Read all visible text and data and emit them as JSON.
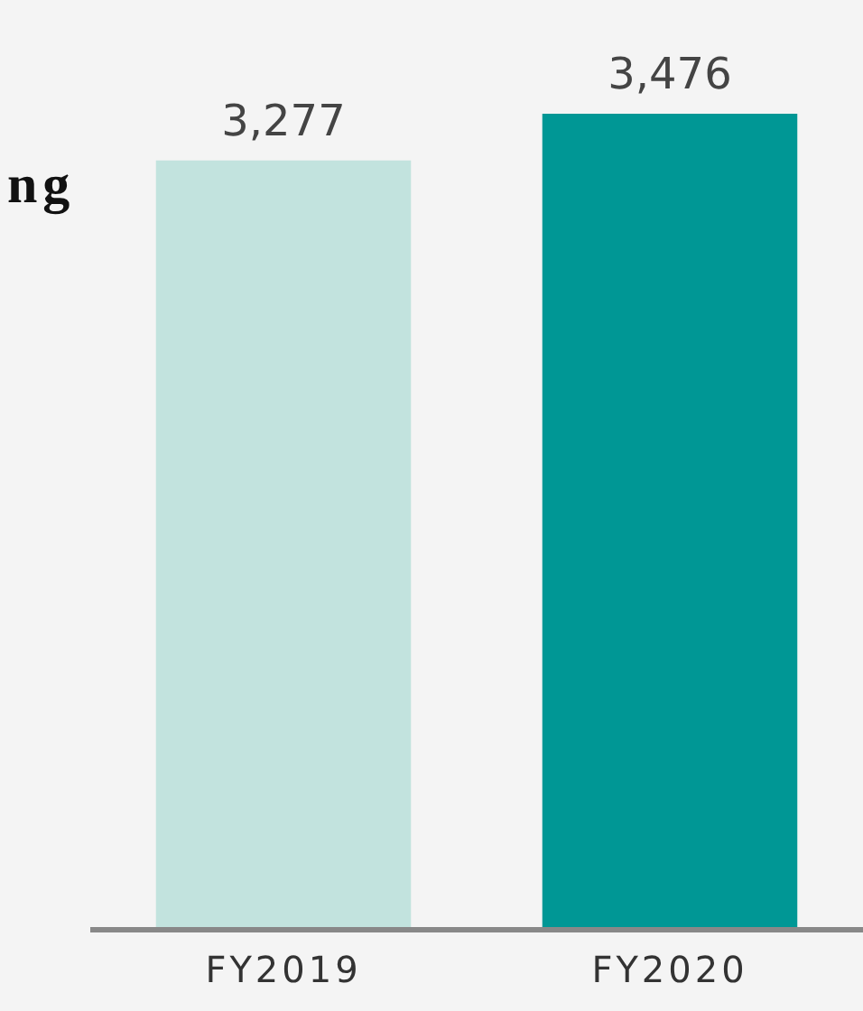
{
  "chart_data": {
    "type": "bar",
    "categories": [
      "FY2019",
      "FY2020"
    ],
    "values": [
      3277,
      3476
    ],
    "value_labels": [
      "3,277",
      "3,476"
    ],
    "colors": [
      "#c2e3de",
      "#009795"
    ],
    "annotations": [
      "ng"
    ]
  }
}
